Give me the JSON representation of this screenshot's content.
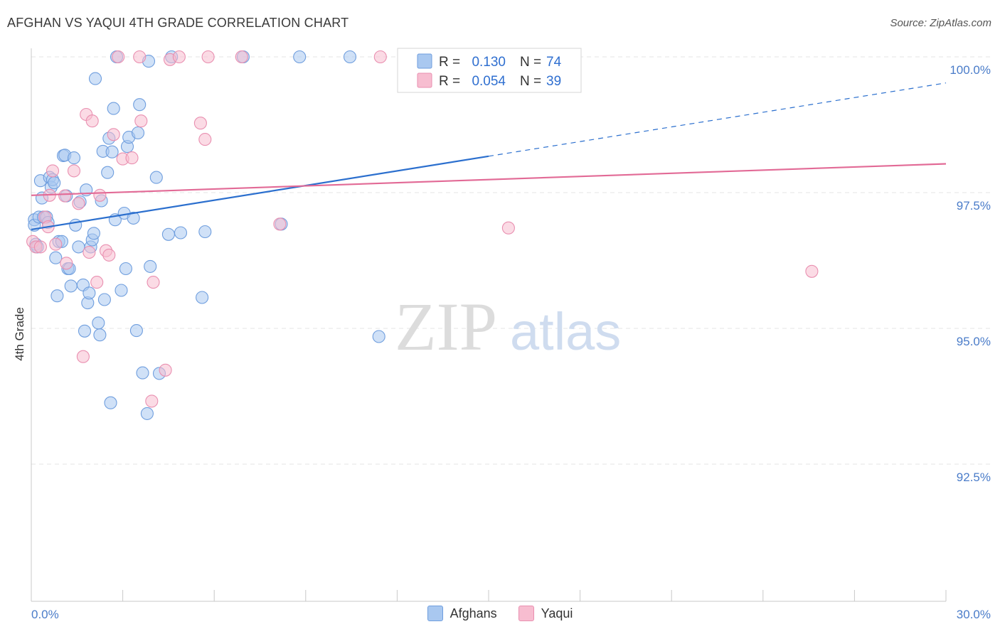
{
  "chart_data": {
    "type": "scatter",
    "title": "AFGHAN VS YAQUI 4TH GRADE CORRELATION CHART",
    "source": "Source: ZipAtlas.com",
    "xlabel": "",
    "ylabel": "4th Grade",
    "xlim": [
      0.0,
      30.0
    ],
    "ylim": [
      90.3,
      100.6
    ],
    "x_tick_labels": [
      "0.0%",
      "30.0%"
    ],
    "y_ticks": [
      92.5,
      95.0,
      97.5,
      100.0
    ],
    "y_tick_labels": [
      "92.5%",
      "95.0%",
      "97.5%",
      "100.0%"
    ],
    "watermark": {
      "zip": "ZIP",
      "atlas": "atlas"
    },
    "legend_box": [
      {
        "r_label": "R =",
        "r_value": "0.130",
        "n_label": "N =",
        "n_value": "74"
      },
      {
        "r_label": "R =",
        "r_value": "0.054",
        "n_label": "N =",
        "n_value": "39"
      }
    ],
    "series": [
      {
        "name": "Afghans",
        "fill": "#a9c8f0",
        "stroke": "#6f9ede",
        "line_color": "#2b6fce",
        "trend": {
          "x0": 0.0,
          "y0": 96.82,
          "x1": 15.0,
          "y1": 98.17,
          "dash_x1": 30.0,
          "dash_y1": 99.52
        },
        "points": [
          [
            0.1,
            97.0
          ],
          [
            0.1,
            96.9
          ],
          [
            0.15,
            96.55
          ],
          [
            0.2,
            96.5
          ],
          [
            0.25,
            97.05
          ],
          [
            0.3,
            97.72
          ],
          [
            0.35,
            97.4
          ],
          [
            0.4,
            97.05
          ],
          [
            0.5,
            97.05
          ],
          [
            0.55,
            96.95
          ],
          [
            0.6,
            97.78
          ],
          [
            0.65,
            97.6
          ],
          [
            0.7,
            97.74
          ],
          [
            0.75,
            97.68
          ],
          [
            0.8,
            96.3
          ],
          [
            0.85,
            95.6
          ],
          [
            0.9,
            96.6
          ],
          [
            1.0,
            96.6
          ],
          [
            1.05,
            98.18
          ],
          [
            1.1,
            98.19
          ],
          [
            1.15,
            97.44
          ],
          [
            1.2,
            96.1
          ],
          [
            1.25,
            96.1
          ],
          [
            1.3,
            95.78
          ],
          [
            1.4,
            98.14
          ],
          [
            1.45,
            96.9
          ],
          [
            1.55,
            96.5
          ],
          [
            1.6,
            97.33
          ],
          [
            1.7,
            95.8
          ],
          [
            1.75,
            94.95
          ],
          [
            1.8,
            97.55
          ],
          [
            1.85,
            95.47
          ],
          [
            1.9,
            95.65
          ],
          [
            1.95,
            96.5
          ],
          [
            2.0,
            96.63
          ],
          [
            2.05,
            96.75
          ],
          [
            2.1,
            99.6
          ],
          [
            2.2,
            95.1
          ],
          [
            2.25,
            94.88
          ],
          [
            2.3,
            97.35
          ],
          [
            2.35,
            98.26
          ],
          [
            2.4,
            95.53
          ],
          [
            2.5,
            97.87
          ],
          [
            2.55,
            98.5
          ],
          [
            2.6,
            93.63
          ],
          [
            2.65,
            98.25
          ],
          [
            2.7,
            99.05
          ],
          [
            2.75,
            97.0
          ],
          [
            2.8,
            100.0
          ],
          [
            2.95,
            95.7
          ],
          [
            3.05,
            97.12
          ],
          [
            3.1,
            96.1
          ],
          [
            3.15,
            98.35
          ],
          [
            3.2,
            98.52
          ],
          [
            3.35,
            97.03
          ],
          [
            3.45,
            94.96
          ],
          [
            3.5,
            98.6
          ],
          [
            3.55,
            99.12
          ],
          [
            3.65,
            94.18
          ],
          [
            3.8,
            93.43
          ],
          [
            3.85,
            99.92
          ],
          [
            3.9,
            96.14
          ],
          [
            4.1,
            97.78
          ],
          [
            4.2,
            94.17
          ],
          [
            4.5,
            96.73
          ],
          [
            4.6,
            100.0
          ],
          [
            4.9,
            96.76
          ],
          [
            5.6,
            95.57
          ],
          [
            5.7,
            96.78
          ],
          [
            6.95,
            100.0
          ],
          [
            8.2,
            96.92
          ],
          [
            8.8,
            100.0
          ],
          [
            10.45,
            100.0
          ],
          [
            11.4,
            94.85
          ]
        ]
      },
      {
        "name": "Yaqui",
        "fill": "#f7bdd0",
        "stroke": "#e98fb0",
        "line_color": "#e26a96",
        "trend": {
          "x0": 0.0,
          "y0": 97.45,
          "x1": 30.0,
          "y1": 98.03
        },
        "points": [
          [
            0.05,
            96.6
          ],
          [
            0.15,
            96.5
          ],
          [
            0.3,
            96.5
          ],
          [
            0.45,
            97.05
          ],
          [
            0.55,
            96.87
          ],
          [
            0.6,
            97.45
          ],
          [
            0.7,
            97.9
          ],
          [
            0.8,
            96.55
          ],
          [
            1.1,
            97.44
          ],
          [
            1.15,
            96.2
          ],
          [
            1.4,
            97.9
          ],
          [
            1.55,
            97.3
          ],
          [
            1.7,
            94.48
          ],
          [
            1.8,
            98.94
          ],
          [
            1.9,
            96.4
          ],
          [
            2.0,
            98.82
          ],
          [
            2.15,
            95.85
          ],
          [
            2.25,
            97.45
          ],
          [
            2.45,
            96.43
          ],
          [
            2.55,
            96.35
          ],
          [
            2.7,
            98.57
          ],
          [
            2.85,
            100.0
          ],
          [
            3.0,
            98.12
          ],
          [
            3.3,
            98.14
          ],
          [
            3.55,
            100.0
          ],
          [
            3.6,
            98.82
          ],
          [
            3.95,
            93.66
          ],
          [
            4.0,
            95.85
          ],
          [
            4.4,
            94.23
          ],
          [
            4.55,
            99.95
          ],
          [
            4.85,
            100.0
          ],
          [
            5.55,
            98.78
          ],
          [
            5.7,
            98.48
          ],
          [
            5.8,
            100.0
          ],
          [
            6.9,
            100.0
          ],
          [
            8.15,
            96.92
          ],
          [
            11.45,
            100.0
          ],
          [
            15.65,
            96.85
          ],
          [
            25.6,
            96.05
          ]
        ]
      }
    ]
  }
}
